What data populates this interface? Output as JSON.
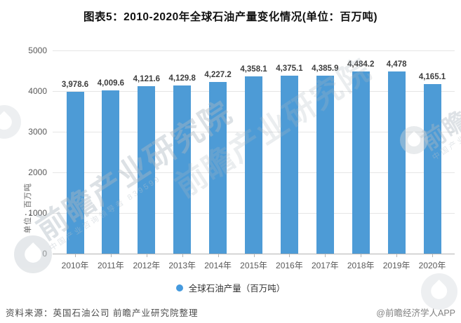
{
  "title": "图表5：2010-2020年全球石油产量变化情况(单位：百万吨)",
  "chart_data": {
    "type": "bar",
    "title": "图表5：2010-2020年全球石油产量变化情况(单位：百万吨)",
    "categories": [
      "2010年",
      "2011年",
      "2012年",
      "2013年",
      "2014年",
      "2015年",
      "2016年",
      "2017年",
      "2018年",
      "2019年",
      "2020年"
    ],
    "values": [
      3978.6,
      4009.6,
      4121.6,
      4129.8,
      4227.2,
      4358.1,
      4375.1,
      4385.9,
      4484.2,
      4478,
      4165.1
    ],
    "value_labels": [
      "3,978.6",
      "4,009.6",
      "4,121.6",
      "4,129.8",
      "4,227.2",
      "4,358.1",
      "4,375.1",
      "4,385.9",
      "4,484.2",
      "4,478",
      "4,165.1"
    ],
    "xlabel": "",
    "ylabel": "单位：百万吨",
    "ylim": [
      0,
      5000
    ],
    "yticks": [
      0,
      1000,
      2000,
      3000,
      4000,
      5000
    ],
    "grid": true,
    "legend_entries": [
      "全球石油产量（百万吨）"
    ],
    "legend_position": "bottom",
    "bar_color": "#4d9bd6"
  },
  "legend": {
    "label": "全球石油产量（百万吨）",
    "marker_color": "#459ade"
  },
  "footer": {
    "source": "资料来源：英国石油公司 前瞻产业研究院整理",
    "credit": "@前瞻经济学人APP"
  },
  "watermark": {
    "brand": "前瞻产业研究院",
    "tagline": "中国产业咨询领导者",
    "digits": "839599"
  }
}
